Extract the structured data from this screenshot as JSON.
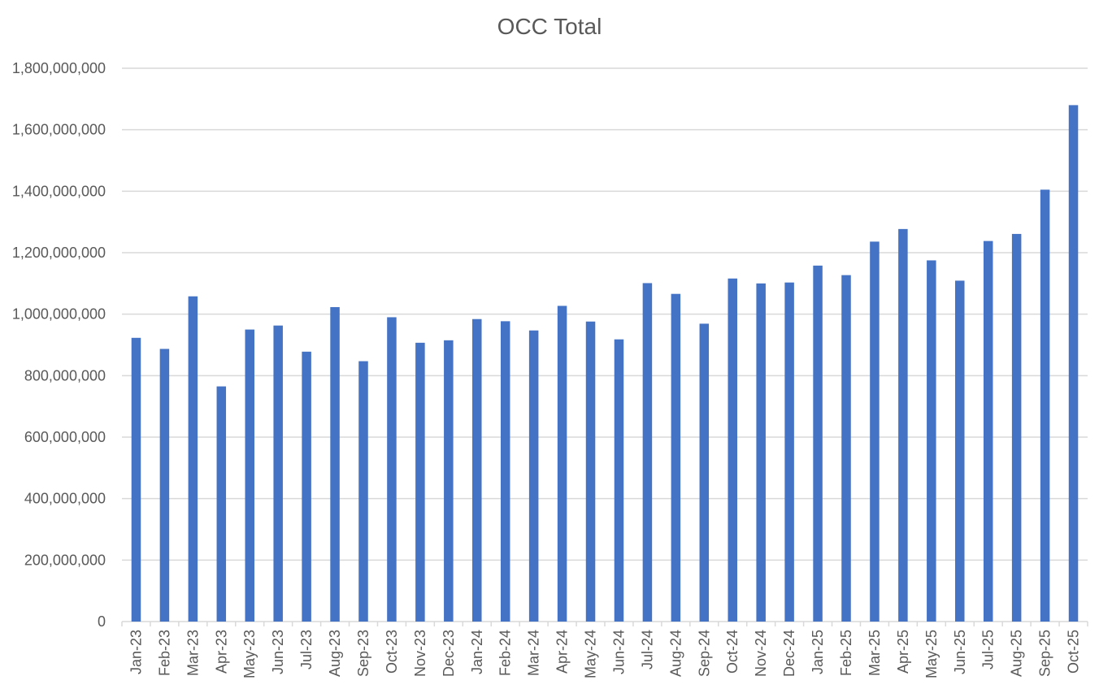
{
  "chart_data": {
    "type": "bar",
    "title": "OCC Total",
    "xlabel": "",
    "ylabel": "",
    "ylim": [
      0,
      1800000000
    ],
    "yticks": [
      0,
      200000000,
      400000000,
      600000000,
      800000000,
      1000000000,
      1200000000,
      1400000000,
      1600000000,
      1800000000
    ],
    "ytick_labels": [
      "0",
      "200,000,000",
      "400,000,000",
      "600,000,000",
      "800,000,000",
      "1,000,000,000",
      "1,200,000,000",
      "1,400,000,000",
      "1,600,000,000",
      "1,800,000,000"
    ],
    "grid": true,
    "legend": "none",
    "bar_color": "#4472C4",
    "grid_color": "#D9D9D9",
    "categories": [
      "Jan-23",
      "Feb-23",
      "Mar-23",
      "Apr-23",
      "May-23",
      "Jun-23",
      "Jul-23",
      "Aug-23",
      "Sep-23",
      "Oct-23",
      "Nov-23",
      "Dec-23",
      "Jan-24",
      "Feb-24",
      "Mar-24",
      "Apr-24",
      "May-24",
      "Jun-24",
      "Jul-24",
      "Aug-24",
      "Sep-24",
      "Oct-24",
      "Nov-24",
      "Dec-24",
      "Jan-25",
      "Feb-25",
      "Mar-25",
      "Apr-25",
      "May-25",
      "Jun-25",
      "Jul-25",
      "Aug-25",
      "Sep-25",
      "Oct-25"
    ],
    "values": [
      923000000,
      887000000,
      1058000000,
      765000000,
      950000000,
      963000000,
      878000000,
      1023000000,
      847000000,
      990000000,
      907000000,
      915000000,
      984000000,
      977000000,
      947000000,
      1027000000,
      976000000,
      918000000,
      1101000000,
      1066000000,
      969000000,
      1116000000,
      1100000000,
      1103000000,
      1158000000,
      1127000000,
      1236000000,
      1277000000,
      1175000000,
      1109000000,
      1238000000,
      1261000000,
      1405000000,
      1680000000
    ]
  }
}
